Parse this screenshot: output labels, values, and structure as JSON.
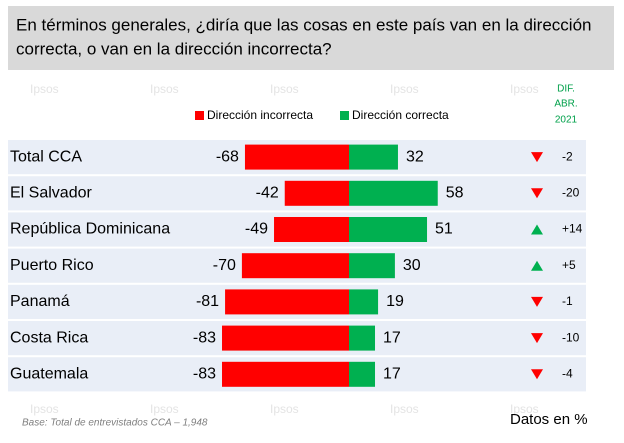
{
  "chart_data": {
    "type": "diverging-bar",
    "title": [
      "En términos generales, ¿diría que las cosas en este país van en la dirección",
      "correcta, o van en la dirección incorrecta?"
    ],
    "categories": [
      "Total CCA",
      "El Salvador",
      "República Dominicana",
      "Puerto Rico",
      "Panamá",
      "Costa Rica",
      "Guatemala"
    ],
    "series": [
      {
        "name": "Dirección incorrecta",
        "color": "#ff0000",
        "values": [
          -68,
          -42,
          -49,
          -70,
          -81,
          -83,
          -83
        ]
      },
      {
        "name": "Dirección correcta",
        "color": "#00b050",
        "values": [
          32,
          58,
          51,
          30,
          19,
          17,
          17
        ]
      }
    ],
    "diff": {
      "title": [
        "DIF.",
        "ABR.",
        "2021"
      ],
      "values": [
        -2,
        -20,
        14,
        5,
        -1,
        -10,
        -4
      ],
      "value_labels": [
        "-2",
        "-20",
        "+14",
        "+5",
        "-1",
        "-10",
        "-4"
      ]
    },
    "footnote": "Base: Total de entrevistados CCA – 1,948",
    "units_note": "Datos en %",
    "watermark": "Ipsos"
  }
}
